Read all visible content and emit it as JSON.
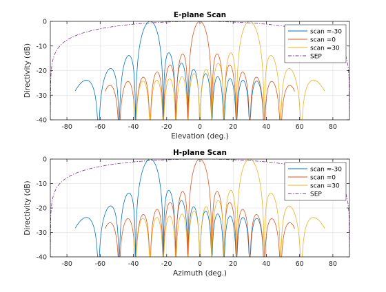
{
  "chart_data": [
    {
      "type": "line",
      "title": "E-plane Scan",
      "xlabel": "Elevation (deg.)",
      "ylabel": "Directivity (dB)",
      "xlim": [
        -90,
        90
      ],
      "ylim": [
        -40,
        0
      ],
      "xticks": [
        -80,
        -60,
        -40,
        -20,
        0,
        20,
        40,
        60,
        80
      ],
      "yticks": [
        -40,
        -30,
        -20,
        -10,
        0
      ],
      "xtick_labels": [
        "-80",
        "-60",
        "-40",
        "-20",
        "0",
        "20",
        "40",
        "60",
        "80"
      ],
      "ytick_labels": [
        "-40",
        "-30",
        "-20",
        "-10",
        "0"
      ],
      "grid": true,
      "legend_position": "top-right",
      "series": [
        {
          "name": "scan =-30",
          "color": "#0072BD",
          "style": "solid",
          "scan_deg": -30,
          "min_deg": -75,
          "max_deg": 40
        },
        {
          "name": "scan =0",
          "color": "#D95319",
          "style": "solid",
          "scan_deg": 0,
          "min_deg": -57,
          "max_deg": 57
        },
        {
          "name": "scan =30",
          "color": "#EDB120",
          "style": "solid",
          "scan_deg": 30,
          "min_deg": -40,
          "max_deg": 75
        },
        {
          "name": "SEP",
          "color": "#7E2F8E",
          "style": "dashdot",
          "min_deg": -90,
          "max_deg": 90
        }
      ]
    },
    {
      "type": "line",
      "title": "H-plane Scan",
      "xlabel": "Azimuth (deg.)",
      "ylabel": "Directivity (dB)",
      "xlim": [
        -90,
        90
      ],
      "ylim": [
        -40,
        0
      ],
      "xticks": [
        -80,
        -60,
        -40,
        -20,
        0,
        20,
        40,
        60,
        80
      ],
      "yticks": [
        -40,
        -30,
        -20,
        -10,
        0
      ],
      "xtick_labels": [
        "-80",
        "-60",
        "-40",
        "-20",
        "0",
        "20",
        "40",
        "60",
        "80"
      ],
      "ytick_labels": [
        "-40",
        "-30",
        "-20",
        "-10",
        "0"
      ],
      "grid": true,
      "legend_position": "top-right",
      "series": [
        {
          "name": "scan =-30",
          "color": "#0072BD",
          "style": "solid",
          "scan_deg": -30,
          "min_deg": -75,
          "max_deg": 40
        },
        {
          "name": "scan =0",
          "color": "#D95319",
          "style": "solid",
          "scan_deg": 0,
          "min_deg": -57,
          "max_deg": 57
        },
        {
          "name": "scan =30",
          "color": "#EDB120",
          "style": "solid",
          "scan_deg": 30,
          "min_deg": -40,
          "max_deg": 75
        },
        {
          "name": "SEP",
          "color": "#7E2F8E",
          "style": "dashdot",
          "min_deg": -90,
          "max_deg": 90
        }
      ]
    }
  ]
}
